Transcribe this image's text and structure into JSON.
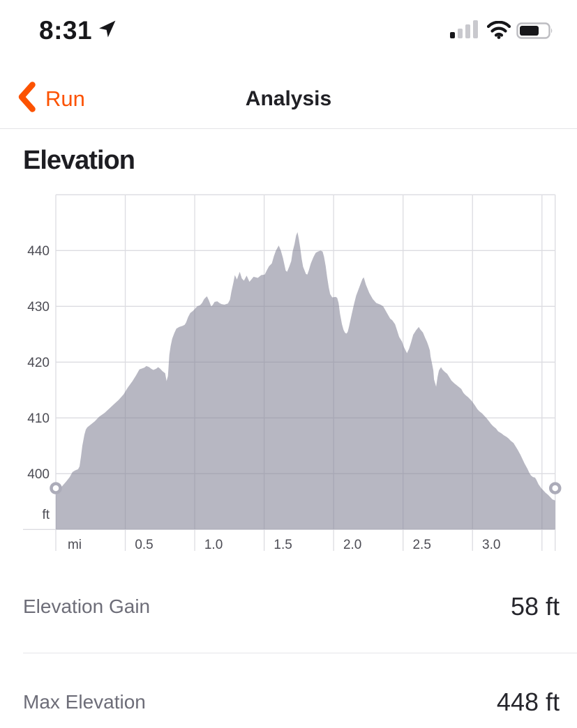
{
  "status_bar": {
    "time": "8:31",
    "location_services_on": true,
    "signal_bars_filled": 1,
    "signal_bars_total": 4,
    "wifi_strength": "full",
    "battery_fill_ratio": 0.62
  },
  "nav": {
    "back_label": "Run",
    "title": "Analysis"
  },
  "section": {
    "heading": "Elevation"
  },
  "stats": [
    {
      "label": "Elevation Gain",
      "value": "58 ft"
    },
    {
      "label": "Max Elevation",
      "value": "448 ft"
    }
  ],
  "colors": {
    "accent": "#FC5200",
    "heading_text": "#1d1d22",
    "stat_label": "#6d6d78",
    "stat_value": "#26262c",
    "axis_text": "#4c4c54",
    "grid": "#dcdce1",
    "area_fill": "rgba(126,126,146,0.56)",
    "handle_ring": "#acacb9",
    "status_dark": "#17171a",
    "status_light": "#c9c9ce"
  },
  "chart_data": {
    "type": "area",
    "title": "",
    "xlabel": "",
    "ylabel": "",
    "x_unit_label": "mi",
    "y_unit_label": "ft",
    "xlim": [
      0,
      3.595
    ],
    "ylim": [
      390,
      450
    ],
    "x_grid_step_mi": 0.5,
    "y_grid_step_ft": 10,
    "x_tick_values": [
      0.5,
      1.0,
      1.5,
      2.0,
      2.5,
      3.0
    ],
    "x_tick_labels": [
      "0.5",
      "1.0",
      "1.5",
      "2.0",
      "2.5",
      "3.0"
    ],
    "y_tick_values": [
      400,
      410,
      420,
      430,
      440
    ],
    "y_tick_labels": [
      "400",
      "410",
      "420",
      "430",
      "440"
    ],
    "grid": true,
    "legend": false,
    "selection_handles": {
      "x_mi": [
        0,
        3.595
      ],
      "y_ft": 397.4
    },
    "points": [
      [
        0.0,
        396.2
      ],
      [
        0.025,
        397.2
      ],
      [
        0.05,
        397.9
      ],
      [
        0.075,
        398.6
      ],
      [
        0.1,
        399.4
      ],
      [
        0.12,
        400.3
      ],
      [
        0.14,
        400.6
      ],
      [
        0.16,
        400.8
      ],
      [
        0.171,
        401.3
      ],
      [
        0.181,
        403.0
      ],
      [
        0.191,
        405.0
      ],
      [
        0.206,
        407.0
      ],
      [
        0.216,
        407.9
      ],
      [
        0.226,
        408.3
      ],
      [
        0.251,
        408.8
      ],
      [
        0.281,
        409.4
      ],
      [
        0.311,
        410.2
      ],
      [
        0.351,
        410.9
      ],
      [
        0.386,
        411.7
      ],
      [
        0.416,
        412.4
      ],
      [
        0.451,
        413.2
      ],
      [
        0.487,
        414.2
      ],
      [
        0.517,
        415.4
      ],
      [
        0.552,
        416.6
      ],
      [
        0.577,
        417.6
      ],
      [
        0.602,
        418.7
      ],
      [
        0.637,
        419.0
      ],
      [
        0.652,
        419.3
      ],
      [
        0.672,
        419.1
      ],
      [
        0.687,
        418.8
      ],
      [
        0.702,
        418.6
      ],
      [
        0.722,
        418.8
      ],
      [
        0.737,
        419.1
      ],
      [
        0.752,
        418.8
      ],
      [
        0.767,
        418.4
      ],
      [
        0.787,
        418.0
      ],
      [
        0.797,
        416.6
      ],
      [
        0.807,
        417.5
      ],
      [
        0.817,
        421.3
      ],
      [
        0.827,
        422.9
      ],
      [
        0.838,
        424.2
      ],
      [
        0.853,
        425.2
      ],
      [
        0.868,
        426.0
      ],
      [
        0.888,
        426.3
      ],
      [
        0.913,
        426.5
      ],
      [
        0.928,
        426.7
      ],
      [
        0.938,
        427.1
      ],
      [
        0.953,
        428.1
      ],
      [
        0.968,
        428.8
      ],
      [
        0.988,
        429.2
      ],
      [
        1.003,
        429.6
      ],
      [
        1.018,
        430.0
      ],
      [
        1.038,
        430.2
      ],
      [
        1.053,
        430.6
      ],
      [
        1.068,
        431.3
      ],
      [
        1.088,
        431.8
      ],
      [
        1.103,
        431.0
      ],
      [
        1.118,
        430.0
      ],
      [
        1.128,
        430.2
      ],
      [
        1.143,
        430.8
      ],
      [
        1.163,
        430.9
      ],
      [
        1.178,
        430.6
      ],
      [
        1.193,
        430.4
      ],
      [
        1.214,
        430.3
      ],
      [
        1.239,
        430.5
      ],
      [
        1.254,
        431.2
      ],
      [
        1.264,
        432.6
      ],
      [
        1.279,
        434.3
      ],
      [
        1.289,
        435.6
      ],
      [
        1.304,
        434.8
      ],
      [
        1.324,
        436.2
      ],
      [
        1.339,
        435.0
      ],
      [
        1.354,
        434.6
      ],
      [
        1.374,
        435.5
      ],
      [
        1.394,
        434.4
      ],
      [
        1.424,
        435.3
      ],
      [
        1.454,
        435.1
      ],
      [
        1.479,
        435.6
      ],
      [
        1.504,
        435.7
      ],
      [
        1.52,
        436.5
      ],
      [
        1.535,
        437.2
      ],
      [
        1.555,
        437.7
      ],
      [
        1.57,
        439.0
      ],
      [
        1.585,
        440.0
      ],
      [
        1.605,
        440.9
      ],
      [
        1.62,
        440.0
      ],
      [
        1.635,
        438.7
      ],
      [
        1.655,
        436.4
      ],
      [
        1.665,
        436.2
      ],
      [
        1.68,
        437.1
      ],
      [
        1.695,
        438.1
      ],
      [
        1.705,
        439.8
      ],
      [
        1.719,
        441.2
      ],
      [
        1.73,
        442.7
      ],
      [
        1.74,
        443.3
      ],
      [
        1.75,
        442.0
      ],
      [
        1.76,
        440.4
      ],
      [
        1.77,
        438.5
      ],
      [
        1.78,
        437.1
      ],
      [
        1.801,
        435.8
      ],
      [
        1.811,
        435.7
      ],
      [
        1.821,
        436.4
      ],
      [
        1.836,
        437.7
      ],
      [
        1.856,
        438.9
      ],
      [
        1.871,
        439.6
      ],
      [
        1.886,
        439.8
      ],
      [
        1.906,
        440.0
      ],
      [
        1.921,
        439.8
      ],
      [
        1.931,
        438.9
      ],
      [
        1.943,
        437.2
      ],
      [
        1.953,
        435.3
      ],
      [
        1.965,
        433.4
      ],
      [
        1.975,
        432.2
      ],
      [
        1.99,
        431.6
      ],
      [
        2.015,
        431.7
      ],
      [
        2.026,
        431.5
      ],
      [
        2.036,
        430.6
      ],
      [
        2.046,
        428.7
      ],
      [
        2.06,
        426.8
      ],
      [
        2.071,
        425.8
      ],
      [
        2.081,
        425.3
      ],
      [
        2.091,
        425.1
      ],
      [
        2.101,
        425.4
      ],
      [
        2.111,
        426.4
      ],
      [
        2.128,
        428.3
      ],
      [
        2.145,
        430.2
      ],
      [
        2.162,
        431.9
      ],
      [
        2.192,
        433.9
      ],
      [
        2.207,
        434.9
      ],
      [
        2.217,
        435.2
      ],
      [
        2.232,
        433.9
      ],
      [
        2.257,
        432.4
      ],
      [
        2.282,
        431.3
      ],
      [
        2.307,
        430.6
      ],
      [
        2.337,
        430.3
      ],
      [
        2.357,
        430.0
      ],
      [
        2.382,
        428.9
      ],
      [
        2.407,
        427.8
      ],
      [
        2.422,
        427.5
      ],
      [
        2.442,
        426.8
      ],
      [
        2.457,
        425.7
      ],
      [
        2.472,
        424.5
      ],
      [
        2.492,
        423.7
      ],
      [
        2.508,
        422.6
      ],
      [
        2.528,
        421.6
      ],
      [
        2.543,
        422.4
      ],
      [
        2.558,
        423.6
      ],
      [
        2.573,
        424.9
      ],
      [
        2.593,
        425.7
      ],
      [
        2.613,
        426.3
      ],
      [
        2.623,
        425.9
      ],
      [
        2.643,
        425.3
      ],
      [
        2.658,
        424.4
      ],
      [
        2.673,
        423.6
      ],
      [
        2.683,
        422.9
      ],
      [
        2.693,
        422.1
      ],
      [
        2.698,
        421.0
      ],
      [
        2.708,
        419.8
      ],
      [
        2.718,
        418.5
      ],
      [
        2.723,
        416.9
      ],
      [
        2.738,
        415.6
      ],
      [
        2.748,
        417.3
      ],
      [
        2.758,
        418.5
      ],
      [
        2.773,
        419.1
      ],
      [
        2.783,
        418.7
      ],
      [
        2.798,
        418.3
      ],
      [
        2.818,
        417.9
      ],
      [
        2.833,
        417.3
      ],
      [
        2.848,
        416.7
      ],
      [
        2.869,
        416.2
      ],
      [
        2.884,
        415.9
      ],
      [
        2.899,
        415.6
      ],
      [
        2.919,
        415.2
      ],
      [
        2.934,
        414.5
      ],
      [
        2.949,
        414.1
      ],
      [
        2.969,
        413.7
      ],
      [
        2.984,
        413.3
      ],
      [
        2.999,
        412.9
      ],
      [
        3.019,
        412.2
      ],
      [
        3.034,
        411.6
      ],
      [
        3.049,
        411.2
      ],
      [
        3.069,
        410.8
      ],
      [
        3.084,
        410.4
      ],
      [
        3.099,
        410.0
      ],
      [
        3.119,
        409.4
      ],
      [
        3.134,
        408.9
      ],
      [
        3.149,
        408.5
      ],
      [
        3.169,
        408.1
      ],
      [
        3.184,
        407.6
      ],
      [
        3.21,
        407.2
      ],
      [
        3.225,
        406.9
      ],
      [
        3.245,
        406.6
      ],
      [
        3.26,
        406.3
      ],
      [
        3.275,
        405.9
      ],
      [
        3.295,
        405.5
      ],
      [
        3.31,
        404.9
      ],
      [
        3.325,
        404.3
      ],
      [
        3.345,
        403.4
      ],
      [
        3.36,
        402.6
      ],
      [
        3.375,
        401.8
      ],
      [
        3.395,
        400.9
      ],
      [
        3.41,
        400.1
      ],
      [
        3.42,
        399.7
      ],
      [
        3.435,
        399.4
      ],
      [
        3.45,
        399.3
      ],
      [
        3.46,
        398.9
      ],
      [
        3.475,
        398.1
      ],
      [
        3.495,
        397.4
      ],
      [
        3.51,
        397.0
      ],
      [
        3.525,
        396.6
      ],
      [
        3.545,
        396.2
      ],
      [
        3.56,
        395.8
      ],
      [
        3.575,
        395.4
      ],
      [
        3.595,
        395.2
      ]
    ]
  }
}
